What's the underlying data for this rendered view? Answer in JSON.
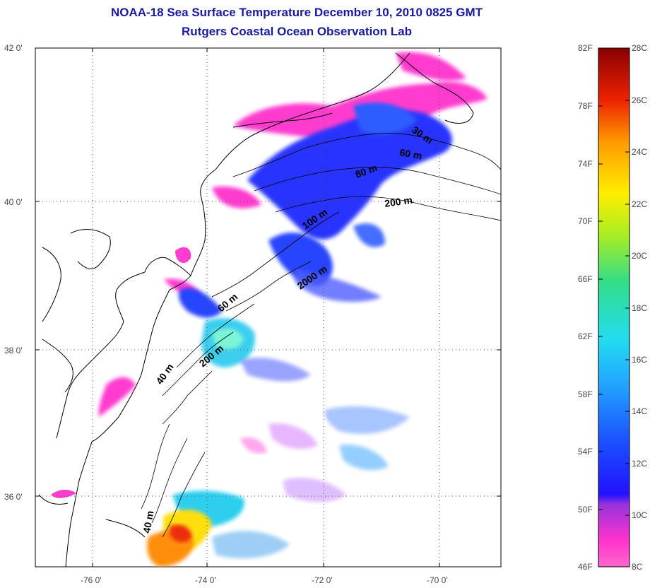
{
  "title": {
    "line1": "NOAA-18 Sea Surface Temperature December 10, 2010 0825 GMT",
    "line2": "Rutgers Coastal Ocean Observation Lab"
  },
  "map": {
    "lat_labels": [
      "42 0'",
      "40 0'",
      "38 0'",
      "36 0'"
    ],
    "lon_labels": [
      "-76 0'",
      "-74 0'",
      "-72 0'",
      "-70 0'"
    ],
    "depth_labels": [
      "30 m",
      "60 m",
      "80 m",
      "200 m",
      "100 m",
      "2000 m",
      "60 m",
      "200 m",
      "40 m",
      "40 m"
    ]
  },
  "colorbar": {
    "f_labels": [
      "82F",
      "78F",
      "74F",
      "70F",
      "66F",
      "62F",
      "58F",
      "54F",
      "50F",
      "46F"
    ],
    "c_labels": [
      "28C",
      "26C",
      "24C",
      "22C",
      "20C",
      "18C",
      "16C",
      "14C",
      "12C",
      "10C",
      "8C"
    ]
  },
  "colors": {
    "title": "#1a1aa0",
    "cold_magenta": "#ff33cc",
    "blue": "#1a2bff",
    "cyan": "#22ddee",
    "warm_red": "#ee2200"
  }
}
